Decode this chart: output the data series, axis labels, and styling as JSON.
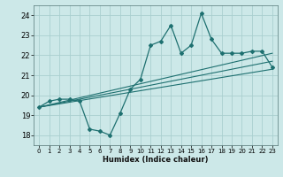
{
  "title": "",
  "xlabel": "Humidex (Indice chaleur)",
  "ylabel": "",
  "xlim": [
    -0.5,
    23.5
  ],
  "ylim": [
    17.5,
    24.5
  ],
  "yticks": [
    18,
    19,
    20,
    21,
    22,
    23,
    24
  ],
  "xticks": [
    0,
    1,
    2,
    3,
    4,
    5,
    6,
    7,
    8,
    9,
    10,
    11,
    12,
    13,
    14,
    15,
    16,
    17,
    18,
    19,
    20,
    21,
    22,
    23
  ],
  "background_color": "#cce8e8",
  "grid_color": "#aacfcf",
  "line_color": "#1e7070",
  "main_data_x": [
    0,
    1,
    2,
    3,
    4,
    5,
    6,
    7,
    8,
    9,
    10,
    11,
    12,
    13,
    14,
    15,
    16,
    17,
    18,
    19,
    20,
    21,
    22,
    23
  ],
  "main_data_y": [
    19.4,
    19.7,
    19.8,
    19.8,
    19.7,
    18.3,
    18.2,
    18.0,
    19.1,
    20.3,
    20.8,
    22.5,
    22.7,
    23.5,
    22.1,
    22.5,
    24.1,
    22.8,
    22.1,
    22.1,
    22.1,
    22.2,
    22.2,
    21.4
  ],
  "trend1_x": [
    0,
    23
  ],
  "trend1_y": [
    19.4,
    21.3
  ],
  "trend2_x": [
    0,
    23
  ],
  "trend2_y": [
    19.4,
    22.1
  ],
  "trend3_x": [
    0,
    23
  ],
  "trend3_y": [
    19.4,
    21.7
  ]
}
